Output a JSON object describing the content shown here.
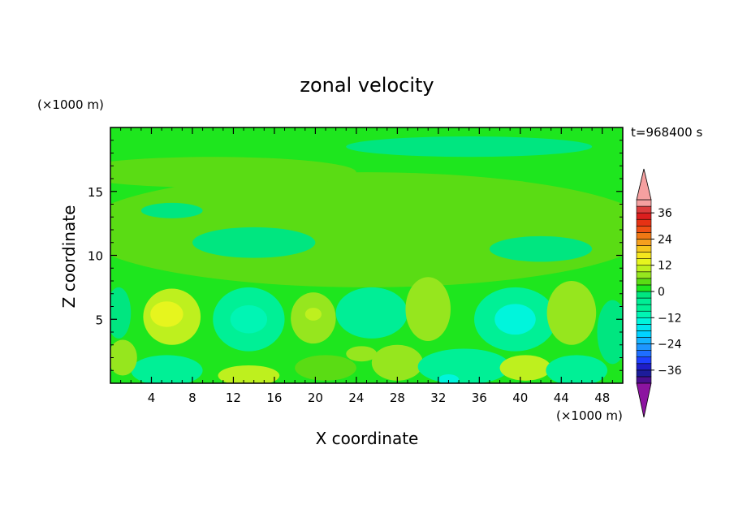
{
  "chart_data": {
    "type": "heatmap",
    "title": "zonal velocity",
    "xlabel": "X coordinate",
    "ylabel": "Z coordinate",
    "x_units": "(×1000 m)",
    "y_units": "(×1000 m)",
    "time_label": "t=968400 s",
    "xlim": [
      0,
      50
    ],
    "ylim": [
      0,
      20
    ],
    "x_ticks": [
      4,
      8,
      12,
      16,
      20,
      24,
      28,
      32,
      36,
      40,
      44,
      48
    ],
    "y_ticks": [
      5,
      10,
      15
    ],
    "colorbar": {
      "levels": [
        -42,
        -39,
        -36,
        -33,
        -30,
        -27,
        -24,
        -21,
        -18,
        -15,
        -12,
        -9,
        -6,
        -3,
        0,
        3,
        6,
        9,
        12,
        15,
        18,
        21,
        24,
        27,
        30,
        33,
        36,
        39,
        42
      ],
      "colors": [
        "#4b0f8f",
        "#1c1c9a",
        "#1e1ec8",
        "#1e40ff",
        "#1e6eff",
        "#1e96ff",
        "#14b4ff",
        "#00d2ff",
        "#00e6f0",
        "#00f5dc",
        "#00f5b4",
        "#00f096",
        "#00ee96",
        "#00e680",
        "#1ee61e",
        "#5adc14",
        "#96e61e",
        "#bef01e",
        "#e6f51e",
        "#f5e61e",
        "#f5c81e",
        "#f5a01e",
        "#f07814",
        "#f05014",
        "#e63214",
        "#dc1e1e",
        "#dc3c3c",
        "#f5a0a0"
      ],
      "under_color": "#8c14a0",
      "over_color": "#f5a0a0",
      "tick_labels": [
        "36",
        "24",
        "12",
        "0",
        "-12",
        "-24",
        "-36"
      ],
      "tick_values": [
        36,
        24,
        12,
        0,
        -12,
        -24,
        -36
      ]
    },
    "background_value": 1,
    "features": [
      {
        "x": 25,
        "y": 12,
        "rx": 28,
        "ry": 4.5,
        "value": 4
      },
      {
        "x": 10,
        "y": 16.5,
        "rx": 14,
        "ry": 1.2,
        "value": 3
      },
      {
        "x": 35,
        "y": 18.5,
        "rx": 12,
        "ry": 0.8,
        "value": -2
      },
      {
        "x": 14,
        "y": 11,
        "rx": 6,
        "ry": 1.2,
        "value": -2
      },
      {
        "x": 6,
        "y": 13.5,
        "rx": 3,
        "ry": 0.6,
        "value": -2
      },
      {
        "x": 42,
        "y": 10.5,
        "rx": 5,
        "ry": 1,
        "value": -1
      },
      {
        "x": 6,
        "y": 5.2,
        "rx": 2.8,
        "ry": 2.2,
        "value": 9
      },
      {
        "x": 5.5,
        "y": 5.4,
        "rx": 1.6,
        "ry": 1.0,
        "value": 13
      },
      {
        "x": 13.5,
        "y": 5.0,
        "rx": 3.5,
        "ry": 2.5,
        "value": -8
      },
      {
        "x": 13.5,
        "y": 5.0,
        "rx": 1.8,
        "ry": 1.1,
        "value": -12
      },
      {
        "x": 19.8,
        "y": 5.1,
        "rx": 2.2,
        "ry": 2.0,
        "value": 7
      },
      {
        "x": 19.8,
        "y": 5.4,
        "rx": 0.8,
        "ry": 0.5,
        "value": 11
      },
      {
        "x": 25.5,
        "y": 5.5,
        "rx": 3.5,
        "ry": 2.0,
        "value": -6
      },
      {
        "x": 31,
        "y": 5.8,
        "rx": 2.2,
        "ry": 2.5,
        "value": 8
      },
      {
        "x": 39.5,
        "y": 5.0,
        "rx": 4.0,
        "ry": 2.5,
        "value": -8
      },
      {
        "x": 39.5,
        "y": 5.0,
        "rx": 2.0,
        "ry": 1.2,
        "value": -13
      },
      {
        "x": 45,
        "y": 5.5,
        "rx": 2.4,
        "ry": 2.5,
        "value": 8
      },
      {
        "x": 5.5,
        "y": 1.0,
        "rx": 3.5,
        "ry": 1.2,
        "value": -8
      },
      {
        "x": 13.5,
        "y": 0.6,
        "rx": 3.0,
        "ry": 0.8,
        "value": 11
      },
      {
        "x": 21,
        "y": 1.2,
        "rx": 3,
        "ry": 1.0,
        "value": 5
      },
      {
        "x": 24.5,
        "y": 2.3,
        "rx": 1.5,
        "ry": 0.6,
        "value": 7
      },
      {
        "x": 28,
        "y": 1.6,
        "rx": 2.5,
        "ry": 1.4,
        "value": 6
      },
      {
        "x": 34.5,
        "y": 1.3,
        "rx": 4.5,
        "ry": 1.4,
        "value": -8
      },
      {
        "x": 33,
        "y": 0.3,
        "rx": 1.0,
        "ry": 0.4,
        "value": -13
      },
      {
        "x": 40.5,
        "y": 1.2,
        "rx": 2.5,
        "ry": 1.0,
        "value": 9
      },
      {
        "x": 45.5,
        "y": 1.0,
        "rx": 3.0,
        "ry": 1.2,
        "value": -7
      },
      {
        "x": 1.2,
        "y": 2.0,
        "rx": 1.4,
        "ry": 1.4,
        "value": 7
      },
      {
        "x": 0.8,
        "y": 5.5,
        "rx": 1.2,
        "ry": 2.0,
        "value": -3
      },
      {
        "x": 49,
        "y": 4.0,
        "rx": 1.5,
        "ry": 2.5,
        "value": -3
      }
    ]
  }
}
